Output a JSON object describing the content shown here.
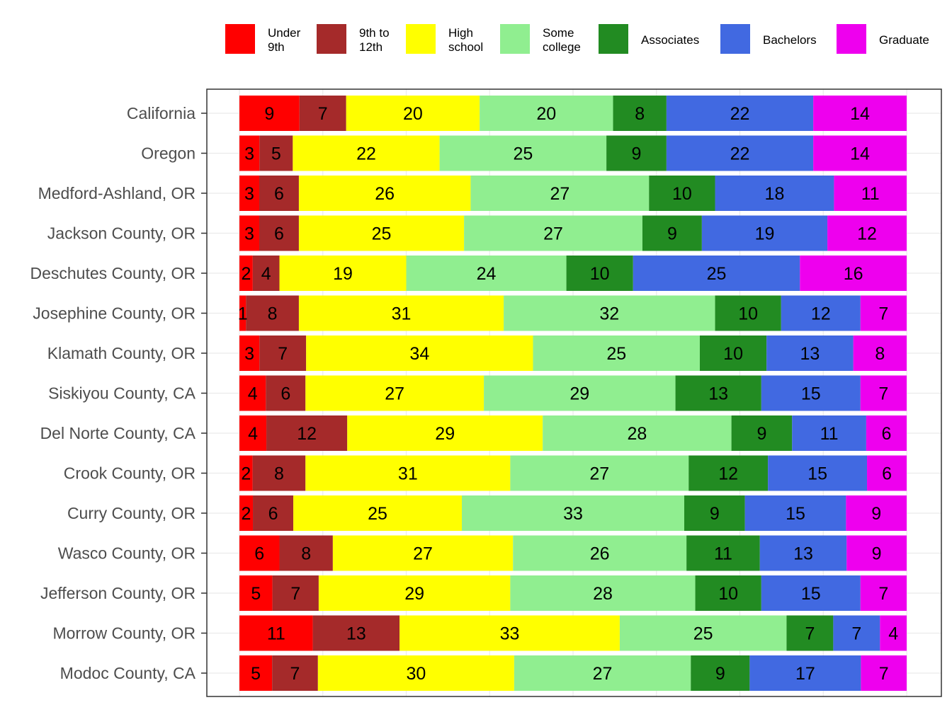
{
  "chart_data": {
    "type": "bar",
    "orientation": "horizontal",
    "stacked": true,
    "title": "",
    "xlabel": "",
    "ylabel": "",
    "grid": true,
    "legend_position": "top",
    "categories": [
      "California",
      "Oregon",
      "Medford-Ashland, OR",
      "Jackson County, OR",
      "Deschutes County, OR",
      "Josephine County, OR",
      "Klamath County, OR",
      "Siskiyou County, CA",
      "Del Norte County, CA",
      "Crook County, OR",
      "Curry County, OR",
      "Wasco County, OR",
      "Jefferson County, OR",
      "Morrow County, OR",
      "Modoc County, CA"
    ],
    "series": [
      {
        "name": "Under 9th",
        "legend_lines": [
          "Under",
          "9th"
        ],
        "color": "#ff0000",
        "values": [
          9,
          3,
          3,
          3,
          2,
          1,
          3,
          4,
          4,
          2,
          2,
          6,
          5,
          11,
          5
        ]
      },
      {
        "name": "9th to 12th",
        "legend_lines": [
          "9th to",
          "12th"
        ],
        "color": "#a52a2a",
        "values": [
          7,
          5,
          6,
          6,
          4,
          8,
          7,
          6,
          12,
          8,
          6,
          8,
          7,
          13,
          7
        ]
      },
      {
        "name": "High school",
        "legend_lines": [
          "High",
          "school"
        ],
        "color": "#ffff00",
        "values": [
          20,
          22,
          26,
          25,
          19,
          31,
          34,
          27,
          29,
          31,
          25,
          27,
          29,
          33,
          30
        ]
      },
      {
        "name": "Some college",
        "legend_lines": [
          "Some",
          "college"
        ],
        "color": "#90ee90",
        "values": [
          20,
          25,
          27,
          27,
          24,
          32,
          25,
          29,
          28,
          27,
          33,
          26,
          28,
          25,
          27
        ]
      },
      {
        "name": "Associates",
        "legend_lines": [
          "Associates"
        ],
        "color": "#228b22",
        "values": [
          8,
          9,
          10,
          9,
          10,
          10,
          10,
          13,
          9,
          12,
          9,
          11,
          10,
          7,
          9
        ]
      },
      {
        "name": "Bachelors",
        "legend_lines": [
          "Bachelors"
        ],
        "color": "#4169e1",
        "values": [
          22,
          22,
          18,
          19,
          25,
          12,
          13,
          15,
          11,
          15,
          15,
          13,
          15,
          7,
          17
        ]
      },
      {
        "name": "Graduate",
        "legend_lines": [
          "Graduate"
        ],
        "color": "#ee00ee",
        "values": [
          14,
          14,
          11,
          12,
          16,
          7,
          8,
          7,
          6,
          6,
          9,
          9,
          7,
          4,
          7
        ]
      }
    ]
  }
}
